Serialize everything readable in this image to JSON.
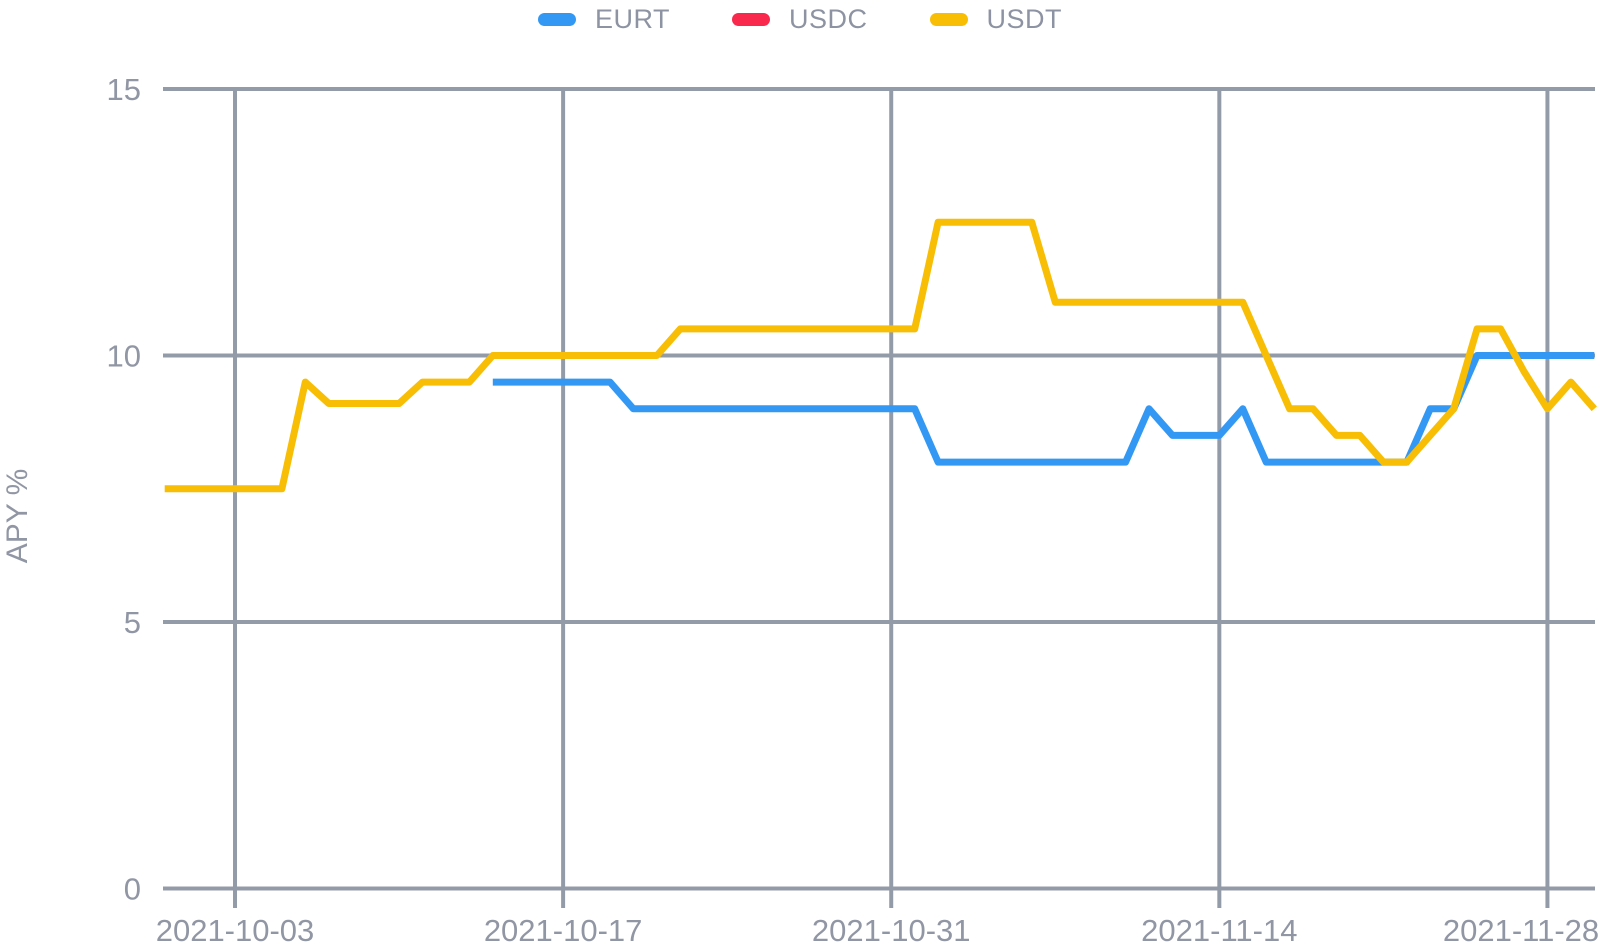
{
  "page": {
    "background": "#ffffff"
  },
  "legend": {
    "position": "top-center",
    "items": [
      {
        "label": "EURT",
        "color": "#3398f4"
      },
      {
        "label": "USDC",
        "color": "#f9294d"
      },
      {
        "label": "USDT",
        "color": "#f8bd05"
      }
    ]
  },
  "chart_data": {
    "type": "line",
    "title": "",
    "xlabel": "",
    "ylabel": "APY %",
    "ylim": [
      0,
      15
    ],
    "yticks": [
      0,
      5,
      10,
      15
    ],
    "ytick_labels": [
      "0",
      "5",
      "10",
      "15"
    ],
    "grid": "on",
    "legend_position": "top-center",
    "x_unit": "day",
    "x_range": [
      "2021-09-30",
      "2021-11-30"
    ],
    "total_days": 62,
    "xticks": [
      {
        "day_index": 3,
        "label": "2021-10-03"
      },
      {
        "day_index": 17,
        "label": "2021-10-17"
      },
      {
        "day_index": 31,
        "label": "2021-10-31"
      },
      {
        "day_index": 45,
        "label": "2021-11-14"
      },
      {
        "day_index": 59,
        "label": "2021-11-28"
      }
    ],
    "series": [
      {
        "name": "EURT",
        "color": "#3398f4",
        "line_visible": true,
        "start_date": "2021-10-14",
        "start_day_index": 14,
        "values": [
          9.5,
          9.5,
          9.5,
          9.5,
          9.5,
          9.5,
          9.0,
          9.0,
          9.0,
          9.0,
          9.0,
          9.0,
          9.0,
          9.0,
          9.0,
          9.0,
          9.0,
          9.0,
          9.0,
          8.0,
          8.0,
          8.0,
          8.0,
          8.0,
          8.0,
          8.0,
          8.0,
          8.0,
          9.0,
          8.5,
          8.5,
          8.5,
          9.0,
          8.0,
          8.0,
          8.0,
          8.0,
          8.0,
          8.0,
          8.0,
          9.0,
          9.0,
          10.0,
          10.0,
          10.0,
          10.0,
          10.0,
          10.0
        ]
      },
      {
        "name": "USDC",
        "color": "#f9294d",
        "line_visible": false,
        "values": []
      },
      {
        "name": "USDT",
        "color": "#f8bd05",
        "line_visible": true,
        "start_date": "2021-09-30",
        "start_day_index": 0,
        "values": [
          7.5,
          7.5,
          7.5,
          7.5,
          7.5,
          7.5,
          9.5,
          9.1,
          9.1,
          9.1,
          9.1,
          9.5,
          9.5,
          9.5,
          10.0,
          10.0,
          10.0,
          10.0,
          10.0,
          10.0,
          10.0,
          10.0,
          10.5,
          10.5,
          10.5,
          10.5,
          10.5,
          10.5,
          10.5,
          10.5,
          10.5,
          10.5,
          10.5,
          12.5,
          12.5,
          12.5,
          12.5,
          12.5,
          11.0,
          11.0,
          11.0,
          11.0,
          11.0,
          11.0,
          11.0,
          11.0,
          11.0,
          10.0,
          9.0,
          9.0,
          8.5,
          8.5,
          8.0,
          8.0,
          8.5,
          9.0,
          10.5,
          10.5,
          9.7,
          9.0,
          9.5,
          9.0
        ]
      }
    ],
    "colors": {
      "gridline": "#949ba8",
      "tick_text": "#9196a4",
      "axis_label_text": "#9196a4"
    }
  }
}
